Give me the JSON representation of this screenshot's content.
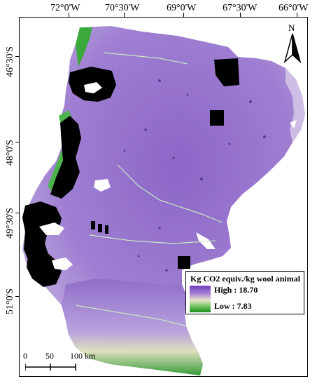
{
  "map": {
    "longitude_labels": [
      "72°0'W",
      "70°30'W",
      "69°0'W",
      "67°30'W",
      "66°0'W"
    ],
    "latitude_labels": [
      "46°30'S",
      "48°0'S",
      "49°30'S",
      "51°0'S"
    ],
    "north_arrow": {
      "label": "N",
      "icon": "north-arrow-icon"
    },
    "legend": {
      "title": "Kg CO2 equiv./kg wool animal",
      "high_label": "High : 18.70",
      "low_label": "Low : 7.83",
      "high_color": "#6e3fbf",
      "mid_color": "#e8e6c8",
      "low_color": "#1a8f1a"
    },
    "scale_bar": {
      "labels": [
        "0",
        "50",
        "100 km"
      ]
    },
    "colors": {
      "region_fill": "#9b7ad0",
      "region_dark": "#6f47b3",
      "forest_green": "#2f9e2f",
      "masked_black": "#000000",
      "water_white": "#ffffff"
    }
  }
}
